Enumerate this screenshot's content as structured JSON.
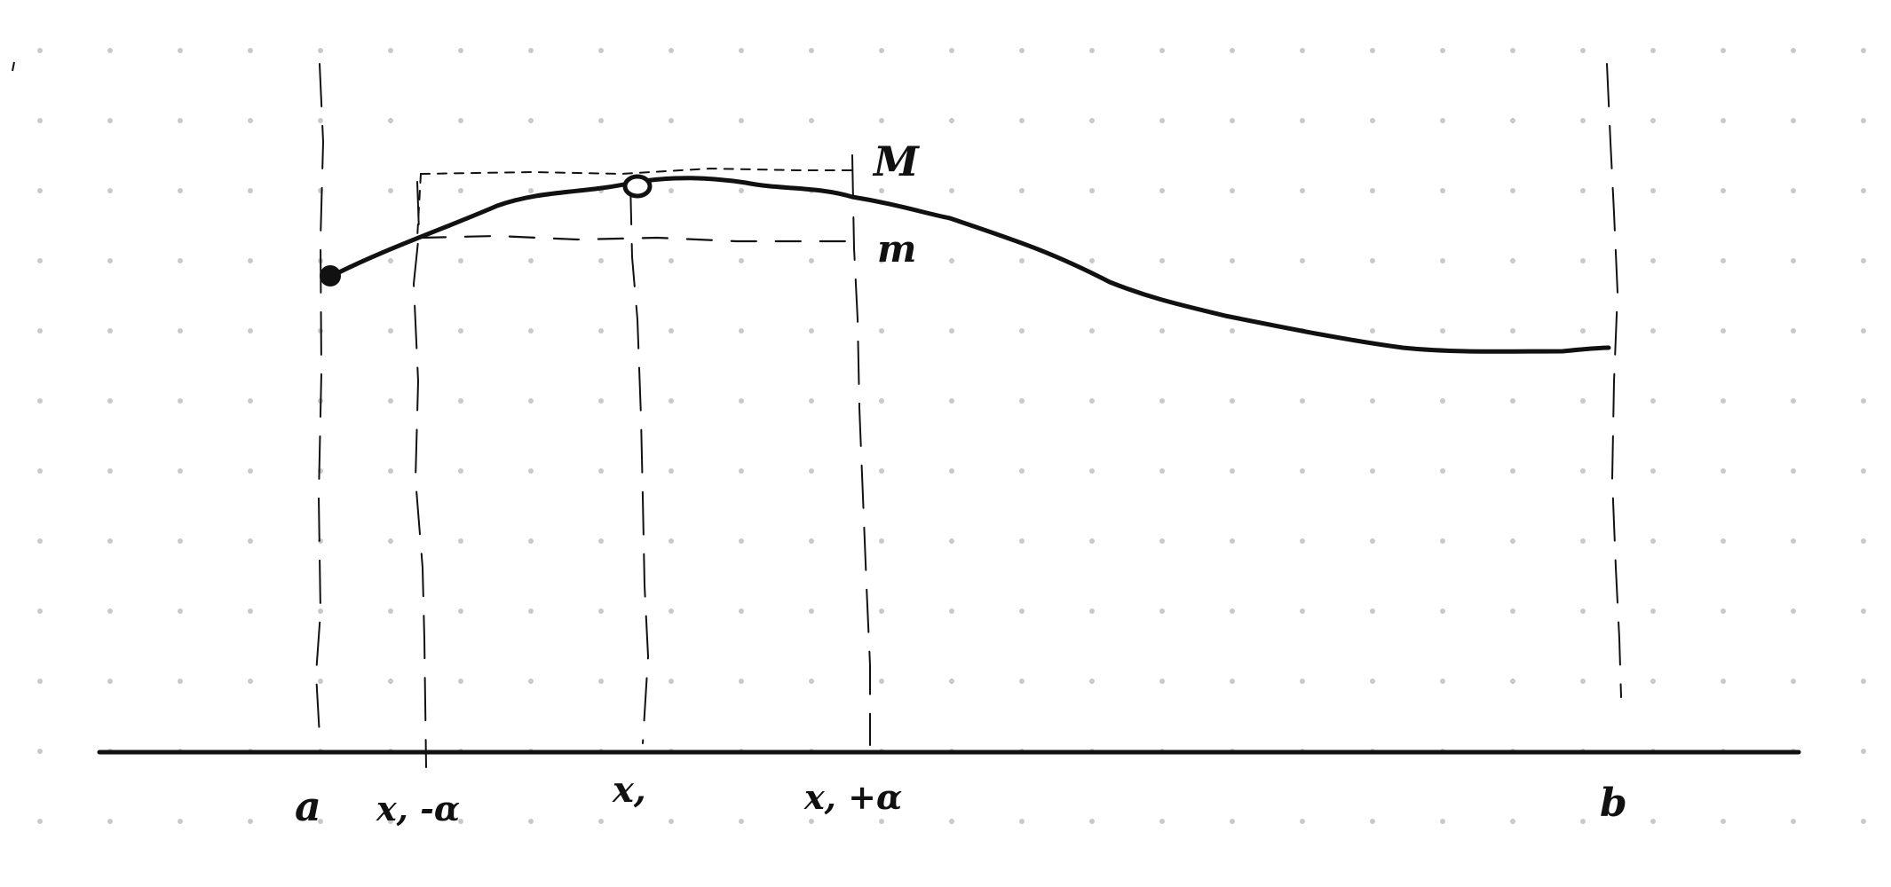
{
  "figure": {
    "labels": {
      "a": "a",
      "x1_minus_alpha": "x, -α",
      "x1": "x,",
      "x1_plus_alpha": "x, +α",
      "b": "b",
      "M": "M",
      "m": "m"
    }
  },
  "colors": {
    "background": "#ffffff",
    "ink": "#111111",
    "grid_dot": "#c9c9c9"
  }
}
